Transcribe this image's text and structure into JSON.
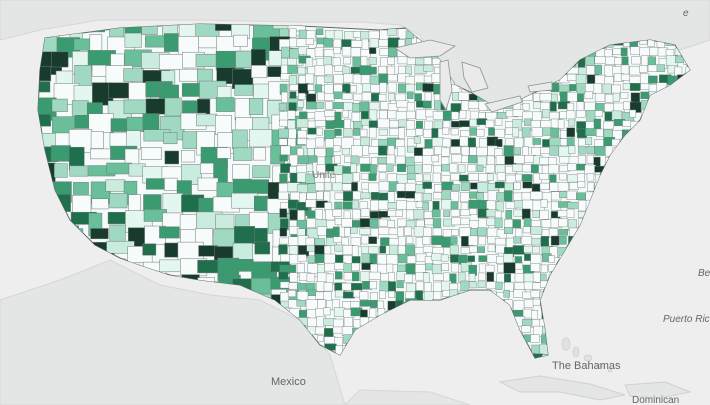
{
  "map": {
    "type": "choropleth",
    "region": "United States counties",
    "palette": {
      "background_land": "#e6e7e7",
      "water": "#eeeeee",
      "county_border": "#6f7b76",
      "empty_fill": "#f7fbfb",
      "scale": [
        "#e4f6f0",
        "#c9ecdf",
        "#9fd9c2",
        "#68bf9a",
        "#3a9a70",
        "#1f6e4c",
        "#193b2e"
      ]
    },
    "labels": {
      "mexico": "Mexico",
      "bahamas": "The Bahamas",
      "puerto_rico": "Puerto Ric",
      "dominican": "Dominican",
      "bermuda": "Be",
      "country_fragment": "Unite",
      "ca_fragment": "e"
    }
  }
}
